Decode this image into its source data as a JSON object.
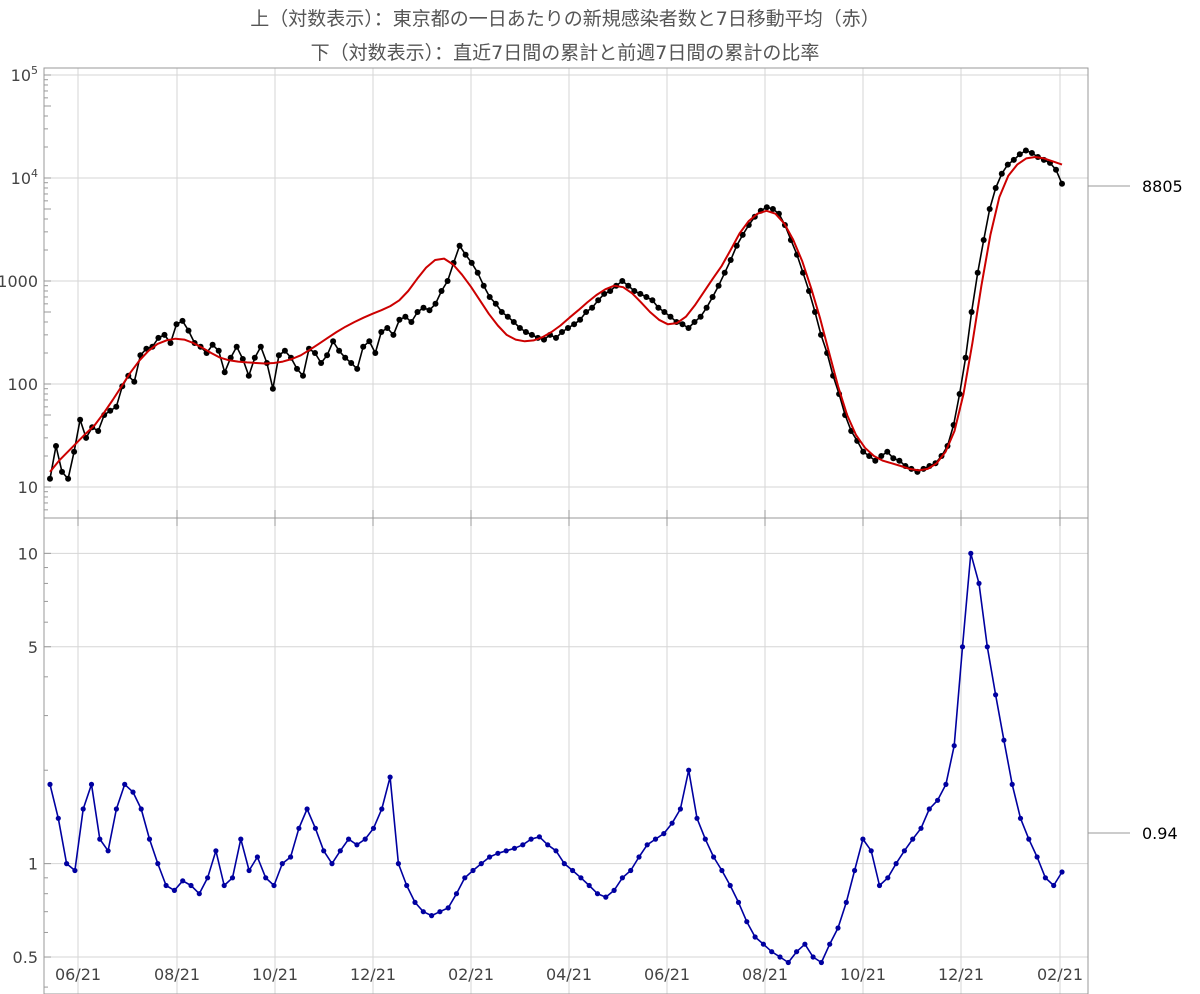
{
  "titles": {
    "line1": "上（対数表示）：東京都の一日あたりの新規感染者数と7日移動平均（赤）",
    "line2": "下（対数表示）：直近7日間の累計と前週7日間の累計の比率"
  },
  "colors": {
    "daily": "#000000",
    "average": "#cc0000",
    "ratio": "#0000a0",
    "grid": "#d6d6d6",
    "frame": "#999999"
  },
  "chart_data": [
    {
      "type": "line",
      "yscale": "log",
      "ylim": [
        5,
        100000
      ],
      "y_ticks": [
        {
          "value": 10,
          "label": "10"
        },
        {
          "value": 100,
          "label": "100"
        },
        {
          "value": 1000,
          "label": "1000"
        },
        {
          "value": 10000,
          "label": "10",
          "exp": "4"
        },
        {
          "value": 100000,
          "label": "10",
          "exp": "5"
        }
      ],
      "x_ticks": [
        "06/21",
        "08/21",
        "10/21",
        "12/21",
        "02/21",
        "04/21",
        "06/21",
        "08/21",
        "10/21",
        "12/21",
        "02/21"
      ],
      "last_value_label": "8805",
      "series": [
        {
          "role": "daily",
          "values": [
            12,
            25,
            14,
            12,
            22,
            45,
            30,
            38,
            35,
            50,
            55,
            60,
            95,
            120,
            105,
            190,
            220,
            230,
            280,
            300,
            250,
            380,
            410,
            330,
            250,
            230,
            200,
            240,
            210,
            130,
            180,
            230,
            175,
            120,
            180,
            230,
            160,
            90,
            190,
            210,
            180,
            140,
            120,
            220,
            200,
            160,
            190,
            260,
            210,
            180,
            160,
            140,
            230,
            260,
            200,
            320,
            350,
            300,
            420,
            450,
            400,
            500,
            550,
            520,
            600,
            800,
            1000,
            1500,
            2200,
            1800,
            1500,
            1200,
            900,
            700,
            600,
            500,
            450,
            400,
            350,
            320,
            300,
            280,
            270,
            300,
            280,
            320,
            350,
            380,
            420,
            500,
            550,
            650,
            750,
            800,
            900,
            1000,
            900,
            800,
            750,
            700,
            650,
            550,
            500,
            450,
            400,
            380,
            350,
            400,
            450,
            550,
            700,
            900,
            1200,
            1600,
            2200,
            2800,
            3500,
            4200,
            4800,
            5200,
            5000,
            4500,
            3500,
            2500,
            1800,
            1200,
            800,
            500,
            300,
            200,
            120,
            80,
            50,
            35,
            28,
            22,
            20,
            18,
            20,
            22,
            19,
            18,
            16,
            15,
            14,
            15,
            16,
            17,
            20,
            25,
            40,
            80,
            180,
            500,
            1200,
            2500,
            5000,
            8000,
            11000,
            13500,
            15000,
            17000,
            18500,
            17500,
            16000,
            15000,
            14000,
            12000,
            8805
          ]
        },
        {
          "role": "average",
          "values": [
            14,
            18,
            22,
            27,
            33,
            40,
            52,
            70,
            95,
            130,
            170,
            210,
            245,
            265,
            275,
            270,
            250,
            225,
            200,
            180,
            170,
            165,
            162,
            160,
            158,
            160,
            165,
            175,
            190,
            215,
            245,
            280,
            320,
            360,
            400,
            440,
            480,
            520,
            570,
            650,
            800,
            1050,
            1350,
            1600,
            1650,
            1450,
            1150,
            880,
            650,
            480,
            370,
            300,
            270,
            260,
            265,
            285,
            320,
            370,
            440,
            520,
            620,
            730,
            830,
            900,
            870,
            760,
            620,
            500,
            420,
            380,
            390,
            450,
            580,
            780,
            1050,
            1400,
            2000,
            2900,
            3800,
            4500,
            4800,
            4500,
            3600,
            2500,
            1550,
            850,
            430,
            200,
            95,
            50,
            32,
            24,
            20,
            18,
            17,
            16,
            15,
            14.5,
            15,
            17,
            22,
            35,
            80,
            250,
            900,
            2800,
            6500,
            10500,
            13500,
            15500,
            16000,
            15500,
            14500,
            13500
          ]
        },
        {
          "role": "ratio",
          "values": [
            1.8,
            1.4,
            1.0,
            0.95,
            1.5,
            1.8,
            1.2,
            1.1,
            1.5,
            1.8,
            1.7,
            1.5,
            1.2,
            1.0,
            0.85,
            0.82,
            0.88,
            0.85,
            0.8,
            0.9,
            1.1,
            0.85,
            0.9,
            1.2,
            0.95,
            1.05,
            0.9,
            0.85,
            1.0,
            1.05,
            1.3,
            1.5,
            1.3,
            1.1,
            1.0,
            1.1,
            1.2,
            1.15,
            1.2,
            1.3,
            1.5,
            1.9,
            1.0,
            0.85,
            0.75,
            0.7,
            0.68,
            0.7,
            0.72,
            0.8,
            0.9,
            0.95,
            1.0,
            1.05,
            1.08,
            1.1,
            1.12,
            1.15,
            1.2,
            1.22,
            1.15,
            1.1,
            1.0,
            0.95,
            0.9,
            0.85,
            0.8,
            0.78,
            0.82,
            0.9,
            0.95,
            1.05,
            1.15,
            1.2,
            1.25,
            1.35,
            1.5,
            2.0,
            1.4,
            1.2,
            1.05,
            0.95,
            0.85,
            0.75,
            0.65,
            0.58,
            0.55,
            0.52,
            0.5,
            0.48,
            0.52,
            0.55,
            0.5,
            0.48,
            0.55,
            0.62,
            0.75,
            0.95,
            1.2,
            1.1,
            0.85,
            0.9,
            1.0,
            1.1,
            1.2,
            1.3,
            1.5,
            1.6,
            1.8,
            2.4,
            5.0,
            10.0,
            8.0,
            5.0,
            3.5,
            2.5,
            1.8,
            1.4,
            1.2,
            1.05,
            0.9,
            0.85,
            0.94
          ]
        }
      ]
    },
    {
      "type": "line",
      "yscale": "log",
      "ylim": [
        0.38,
        13
      ],
      "y_ticks": [
        {
          "value": 0.5,
          "label": "0.5"
        },
        {
          "value": 1,
          "label": "1"
        },
        {
          "value": 5,
          "label": "5"
        },
        {
          "value": 10,
          "label": "10"
        }
      ],
      "last_value_label": "0.94"
    }
  ]
}
